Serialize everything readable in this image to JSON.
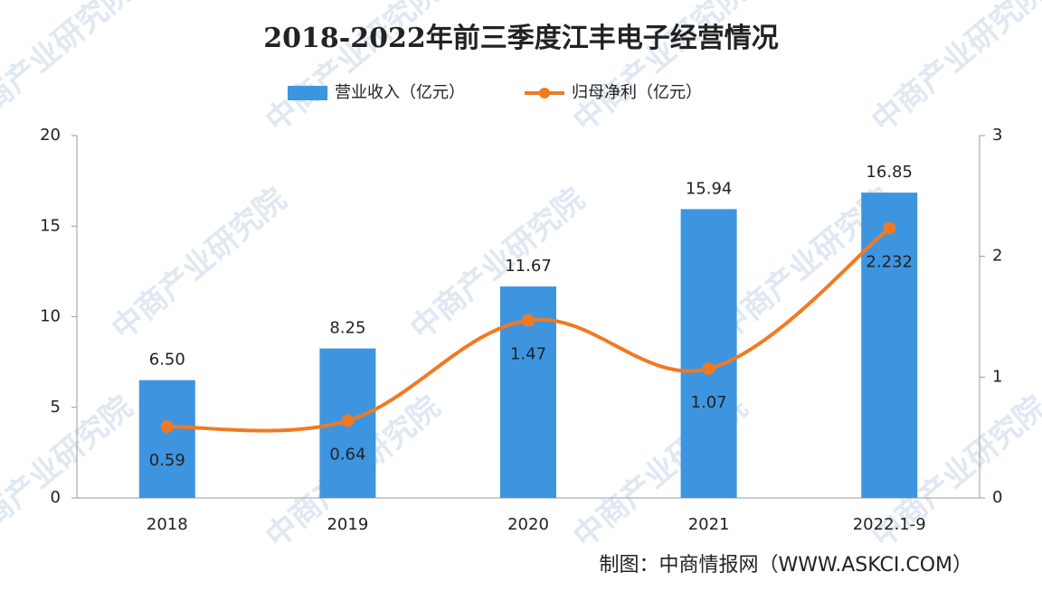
{
  "chart_data": {
    "type": "bar",
    "title": "2018-2022年前三季度江丰电子经营情况",
    "categories": [
      "2018",
      "2019",
      "2020",
      "2021",
      "2022.1-9"
    ],
    "series": [
      {
        "name": "营业收入（亿元）",
        "color": "#3d95e0",
        "values": [
          6.5,
          8.25,
          11.67,
          15.94,
          16.85
        ],
        "value_labels": [
          "6.50",
          "8.25",
          "11.67",
          "15.94",
          "16.85"
        ]
      },
      {
        "name": "归母净利（亿元）",
        "type": "line",
        "axis": "y2",
        "color": "#f07a22",
        "values": [
          0.59,
          0.64,
          1.47,
          1.07,
          2.232
        ]
      }
    ],
    "ylim": [
      0,
      20
    ],
    "yticks": [
      0,
      5,
      10,
      15,
      20
    ],
    "y2lim": [
      0,
      3
    ],
    "y2ticks": [
      0,
      1,
      2,
      3
    ],
    "grid": false,
    "source": "制图：中商情报网（WWW.ASKCI.COM）",
    "watermark": "中商产业研究院"
  }
}
